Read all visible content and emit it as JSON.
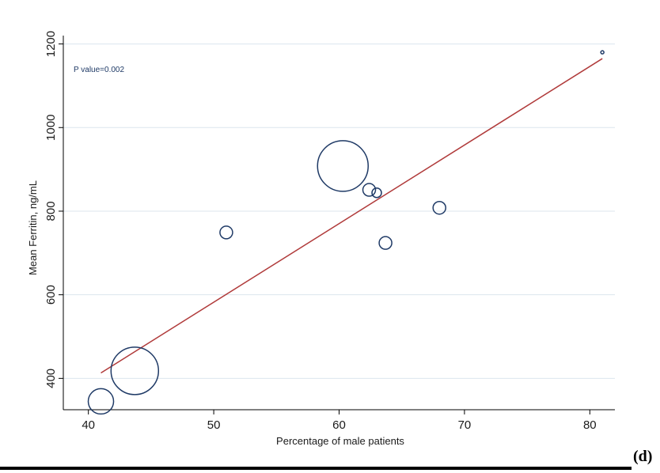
{
  "chart_data": {
    "type": "scatter",
    "title": "",
    "xlabel": "Percentage of male patients",
    "ylabel": "Mean Ferritin, ng/mL",
    "xlim": [
      38,
      82
    ],
    "ylim": [
      325,
      1220
    ],
    "xticks": [
      40,
      50,
      60,
      70,
      80
    ],
    "yticks": [
      400,
      600,
      800,
      1000,
      1200
    ],
    "grid": "horizontal",
    "annotation": "P value=0.002",
    "points": [
      {
        "x": 41.0,
        "y": 345,
        "weight": 16
      },
      {
        "x": 43.7,
        "y": 418,
        "weight": 30
      },
      {
        "x": 51.0,
        "y": 749,
        "weight": 8
      },
      {
        "x": 60.3,
        "y": 908,
        "weight": 32
      },
      {
        "x": 62.4,
        "y": 851,
        "weight": 8
      },
      {
        "x": 63.0,
        "y": 844,
        "weight": 6
      },
      {
        "x": 63.7,
        "y": 724,
        "weight": 8
      },
      {
        "x": 68.0,
        "y": 808,
        "weight": 8
      },
      {
        "x": 81.0,
        "y": 1180,
        "weight": 2
      }
    ],
    "fit_line": {
      "x": [
        41.0,
        81.0
      ],
      "y": [
        413,
        1165
      ]
    },
    "colors": {
      "marker": "#1f3a66",
      "fit": "#b03a3a",
      "grid": "#dce6ee"
    }
  },
  "panel_label": "(d)"
}
